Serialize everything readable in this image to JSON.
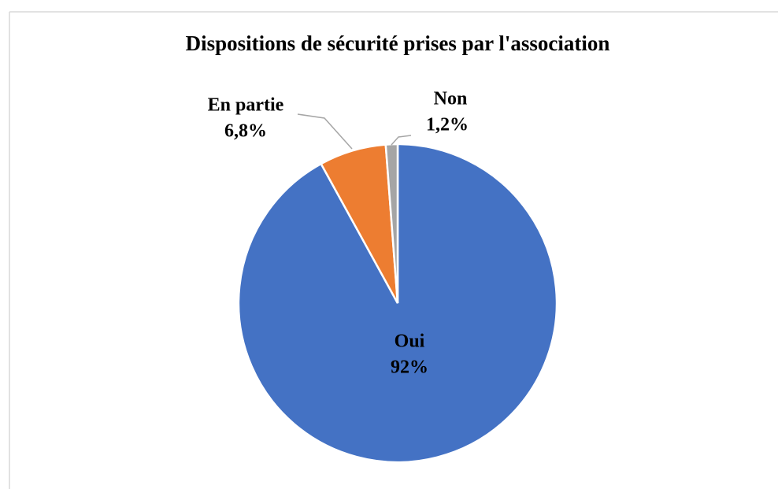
{
  "chart_data": {
    "type": "pie",
    "title": "Dispositions de sécurité prises par l'association",
    "categories": [
      "Oui",
      "En partie",
      "Non"
    ],
    "values": [
      92,
      6.8,
      1.2
    ],
    "value_labels": [
      "92%",
      "6,8%",
      "1,2%"
    ],
    "colors": [
      "#4472c4",
      "#ed7d31",
      "#a5a5a5"
    ]
  }
}
